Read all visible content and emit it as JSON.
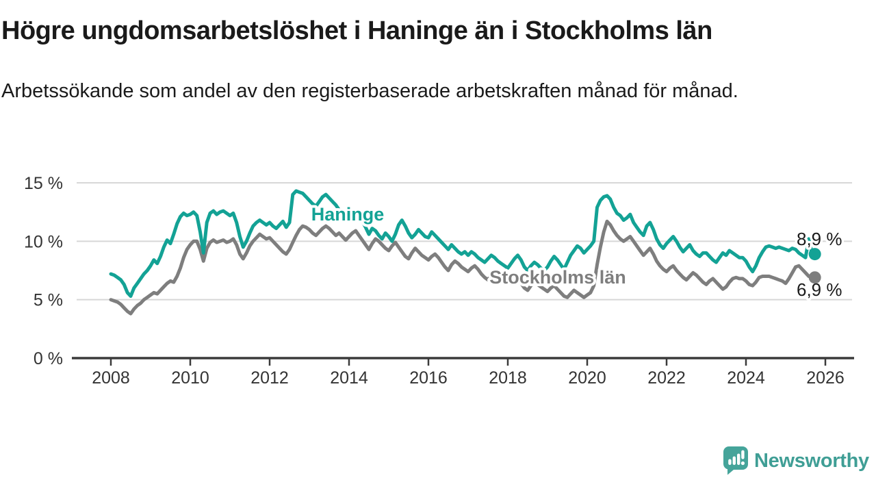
{
  "header": {
    "title": "Högre ungdomsarbetslöshet i Haninge än i Stockholms län",
    "subtitle": "Arbetssökande som andel av den registerbaserade arbetskraften månad för månad."
  },
  "chart_data": {
    "type": "line",
    "unit": "%",
    "frequency": "monthly",
    "x_start": "2008-01",
    "x_end": "2025-09",
    "x_ticks": [
      2008,
      2010,
      2012,
      2014,
      2016,
      2018,
      2020,
      2022,
      2024,
      2026
    ],
    "y_ticks": [
      0,
      5,
      10,
      15
    ],
    "y_tick_suffix": " %",
    "ylim": [
      0,
      15.5
    ],
    "grid": true,
    "grid_color": "#d7d7d7",
    "axis_color": "#3b3b3b",
    "tick_label_color": "#333333",
    "annotation_color": "#1a1a1a",
    "series": [
      {
        "name": "Haninge",
        "color": "#13a295",
        "end_label": "8,9 %",
        "last_value": 8.9,
        "values": [
          7.2,
          7.1,
          6.9,
          6.7,
          6.3,
          5.6,
          5.3,
          6.0,
          6.4,
          6.8,
          7.2,
          7.5,
          7.9,
          8.4,
          8.1,
          8.7,
          9.5,
          10.1,
          9.8,
          10.6,
          11.5,
          12.1,
          12.4,
          12.2,
          12.3,
          12.5,
          12.2,
          10.8,
          9.0,
          11.6,
          12.4,
          12.6,
          12.3,
          12.5,
          12.6,
          12.4,
          12.2,
          12.4,
          11.6,
          10.4,
          9.5,
          10.0,
          10.7,
          11.3,
          11.6,
          11.8,
          11.6,
          11.4,
          11.6,
          11.3,
          11.1,
          11.4,
          11.7,
          11.2,
          11.6,
          14.0,
          14.3,
          14.2,
          14.1,
          13.8,
          13.5,
          13.2,
          13.0,
          13.4,
          13.8,
          14.0,
          13.7,
          13.4,
          13.1,
          12.7,
          12.4,
          12.6,
          12.4,
          12.1,
          11.8,
          12.2,
          11.7,
          11.2,
          10.6,
          11.1,
          10.9,
          10.5,
          10.2,
          10.7,
          10.4,
          10.0,
          10.6,
          11.4,
          11.8,
          11.3,
          10.7,
          10.3,
          10.6,
          11.0,
          10.7,
          10.4,
          10.3,
          10.8,
          10.5,
          10.2,
          9.9,
          9.6,
          9.3,
          9.7,
          9.4,
          9.1,
          8.9,
          9.1,
          8.8,
          9.1,
          8.9,
          8.6,
          8.4,
          8.2,
          8.5,
          8.8,
          8.6,
          8.3,
          8.1,
          7.9,
          7.7,
          8.1,
          8.5,
          8.8,
          8.4,
          7.8,
          7.5,
          7.9,
          8.2,
          8.0,
          7.7,
          7.5,
          7.8,
          8.3,
          8.7,
          8.4,
          8.0,
          7.6,
          8.2,
          8.8,
          9.2,
          9.6,
          9.4,
          9.0,
          9.3,
          9.6,
          10.0,
          12.9,
          13.5,
          13.8,
          13.9,
          13.6,
          12.9,
          12.4,
          12.2,
          11.8,
          12.0,
          12.3,
          11.6,
          11.2,
          10.8,
          10.5,
          11.3,
          11.6,
          11.0,
          10.2,
          9.7,
          9.4,
          9.8,
          10.1,
          10.4,
          10.0,
          9.5,
          9.1,
          9.4,
          9.7,
          9.2,
          8.9,
          8.7,
          9.0,
          9.0,
          8.7,
          8.4,
          8.2,
          8.6,
          9.0,
          8.8,
          9.2,
          9.0,
          8.8,
          8.6,
          8.6,
          8.3,
          7.8,
          7.4,
          7.9,
          8.6,
          9.1,
          9.5,
          9.6,
          9.5,
          9.4,
          9.5,
          9.4,
          9.3,
          9.2,
          9.4,
          9.3,
          9.0,
          8.8,
          8.6,
          10.2,
          8.9
        ]
      },
      {
        "name": "Stockholms län",
        "color": "#7e7e7e",
        "end_label": "6,9 %",
        "last_value": 6.9,
        "values": [
          5.0,
          4.9,
          4.8,
          4.6,
          4.3,
          4.0,
          3.8,
          4.2,
          4.5,
          4.7,
          5.0,
          5.2,
          5.4,
          5.6,
          5.5,
          5.8,
          6.1,
          6.4,
          6.6,
          6.5,
          7.0,
          7.7,
          8.6,
          9.3,
          9.7,
          10.0,
          10.0,
          9.3,
          8.3,
          9.4,
          9.9,
          10.1,
          9.9,
          10.0,
          10.1,
          9.9,
          10.0,
          10.2,
          9.7,
          8.9,
          8.5,
          9.0,
          9.6,
          10.0,
          10.3,
          10.6,
          10.4,
          10.2,
          10.3,
          10.0,
          9.7,
          9.4,
          9.1,
          8.9,
          9.3,
          9.9,
          10.5,
          11.0,
          11.3,
          11.2,
          11.0,
          10.7,
          10.5,
          10.8,
          11.1,
          11.3,
          11.1,
          10.8,
          10.5,
          10.7,
          10.4,
          10.1,
          10.4,
          10.7,
          10.9,
          10.5,
          10.1,
          9.7,
          9.3,
          9.8,
          10.2,
          10.0,
          9.7,
          9.4,
          9.2,
          9.6,
          9.9,
          9.5,
          9.1,
          8.7,
          8.5,
          9.0,
          9.4,
          9.1,
          8.8,
          8.6,
          8.4,
          8.7,
          8.9,
          8.6,
          8.2,
          7.8,
          7.5,
          8.0,
          8.3,
          8.1,
          7.8,
          7.6,
          7.4,
          7.7,
          7.9,
          7.6,
          7.2,
          6.9,
          6.7,
          7.1,
          7.4,
          7.2,
          6.9,
          6.7,
          6.5,
          6.8,
          7.0,
          6.7,
          6.4,
          6.0,
          5.8,
          6.2,
          6.5,
          6.3,
          6.1,
          5.9,
          5.7,
          6.0,
          6.2,
          5.9,
          5.6,
          5.3,
          5.2,
          5.5,
          5.8,
          5.6,
          5.4,
          5.2,
          5.4,
          5.6,
          6.2,
          8.0,
          9.5,
          10.8,
          11.7,
          11.4,
          10.9,
          10.5,
          10.2,
          10.0,
          10.2,
          10.4,
          10.0,
          9.6,
          9.2,
          8.8,
          9.1,
          9.4,
          8.9,
          8.3,
          7.9,
          7.6,
          7.4,
          7.7,
          7.9,
          7.5,
          7.2,
          6.9,
          6.7,
          7.0,
          7.3,
          7.1,
          6.8,
          6.5,
          6.3,
          6.6,
          6.8,
          6.5,
          6.2,
          5.9,
          6.1,
          6.5,
          6.8,
          6.9,
          6.8,
          6.8,
          6.6,
          6.3,
          6.2,
          6.5,
          6.9,
          7.0,
          7.0,
          7.0,
          6.9,
          6.8,
          6.7,
          6.6,
          6.4,
          6.8,
          7.3,
          7.8,
          7.9,
          7.6,
          7.3,
          7.0,
          6.9
        ]
      }
    ]
  },
  "footer": {
    "brand": "Newsworthy",
    "brand_color": "#3f9e95",
    "logo_color": "#45a49a"
  }
}
